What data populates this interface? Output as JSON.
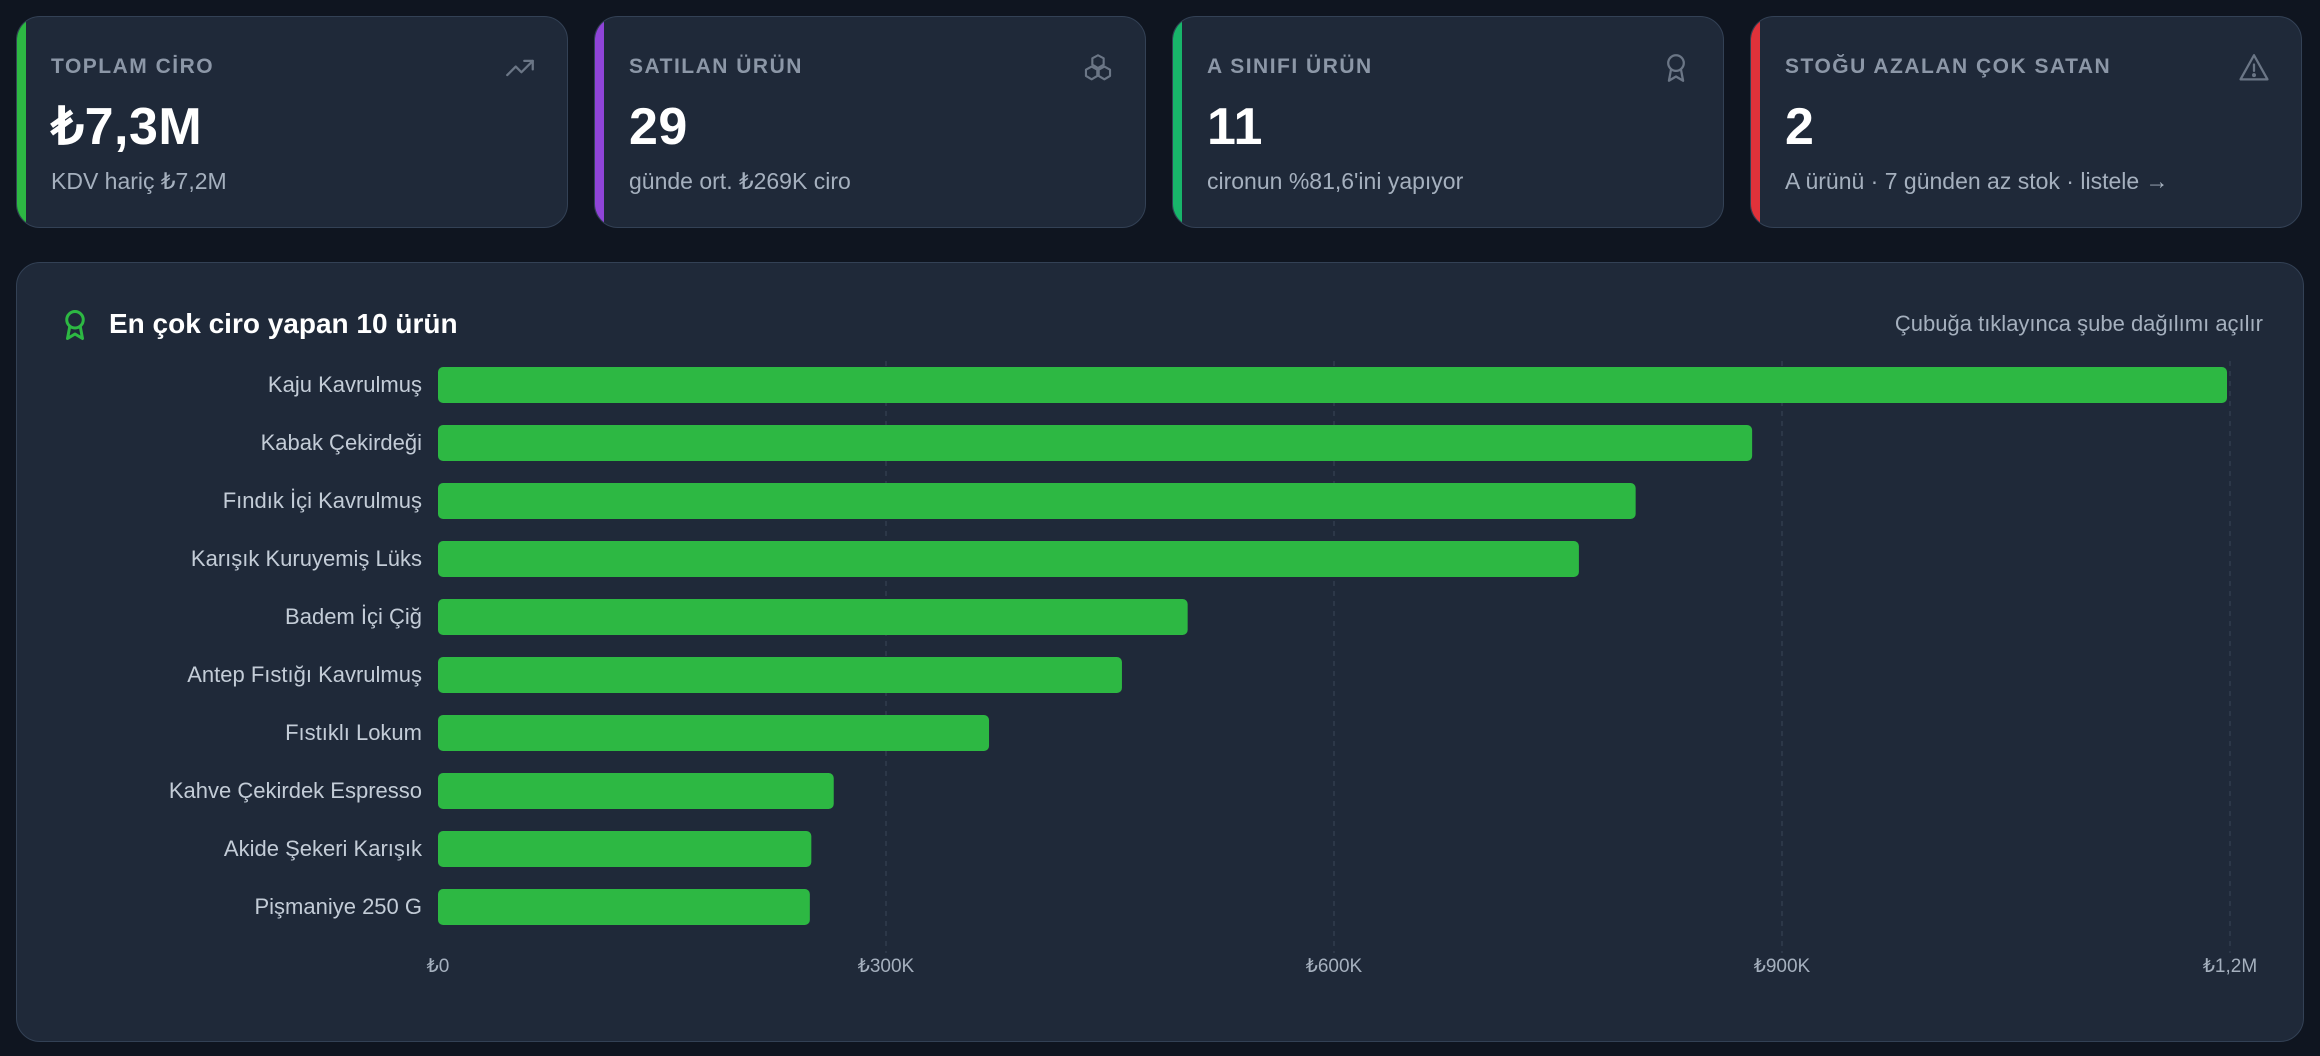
{
  "cards": [
    {
      "label": "TOPLAM CİRO",
      "value": "₺7,3M",
      "sub": "KDV hariç ₺7,2M",
      "accent": "#2db843",
      "icon": "trending-up-icon"
    },
    {
      "label": "SATILAN ÜRÜN",
      "value": "29",
      "sub": "günde ort. ₺269K ciro",
      "accent": "#8f44d8",
      "icon": "boxes-icon"
    },
    {
      "label": "A SINIFI ÜRÜN",
      "value": "11",
      "sub": "cironun %81,6'ini yapıyor",
      "accent": "#18b56a",
      "icon": "award-icon"
    },
    {
      "label": "STOĞU AZALAN ÇOK SATAN",
      "value": "2",
      "sub": "A ürünü · 7 günden az stok · listele →",
      "accent": "#e0323a",
      "icon": "alert-triangle-icon"
    }
  ],
  "panel": {
    "title": "En çok ciro yapan 10 ürün",
    "hint": "Çubuğa tıklayınca şube dağılımı açılır",
    "icon": "award-icon"
  },
  "chart_data": {
    "type": "bar",
    "orientation": "horizontal",
    "categories": [
      "Kaju Kavrulmuş",
      "Kabak Çekirdeği",
      "Fındık İçi Kavrulmuş",
      "Karışık Kuruyemiş Lüks",
      "Badem İçi Çiğ",
      "Antep Fıstığı Kavrulmuş",
      "Fıstıklı Lokum",
      "Kahve Çekirdek Espresso",
      "Akide Şekeri Karışık",
      "Pişmaniye 250 G"
    ],
    "values": [
      1198000,
      880000,
      802000,
      764000,
      502000,
      458000,
      369000,
      265000,
      250000,
      249000
    ],
    "xlim": [
      0,
      1200000
    ],
    "xticks": [
      0,
      300000,
      600000,
      900000,
      1200000
    ],
    "xtick_labels": [
      "₺0",
      "₺300K",
      "₺600K",
      "₺900K",
      "₺1,2M"
    ],
    "bar_color": "#2db843",
    "grid": "vertical dashed"
  }
}
